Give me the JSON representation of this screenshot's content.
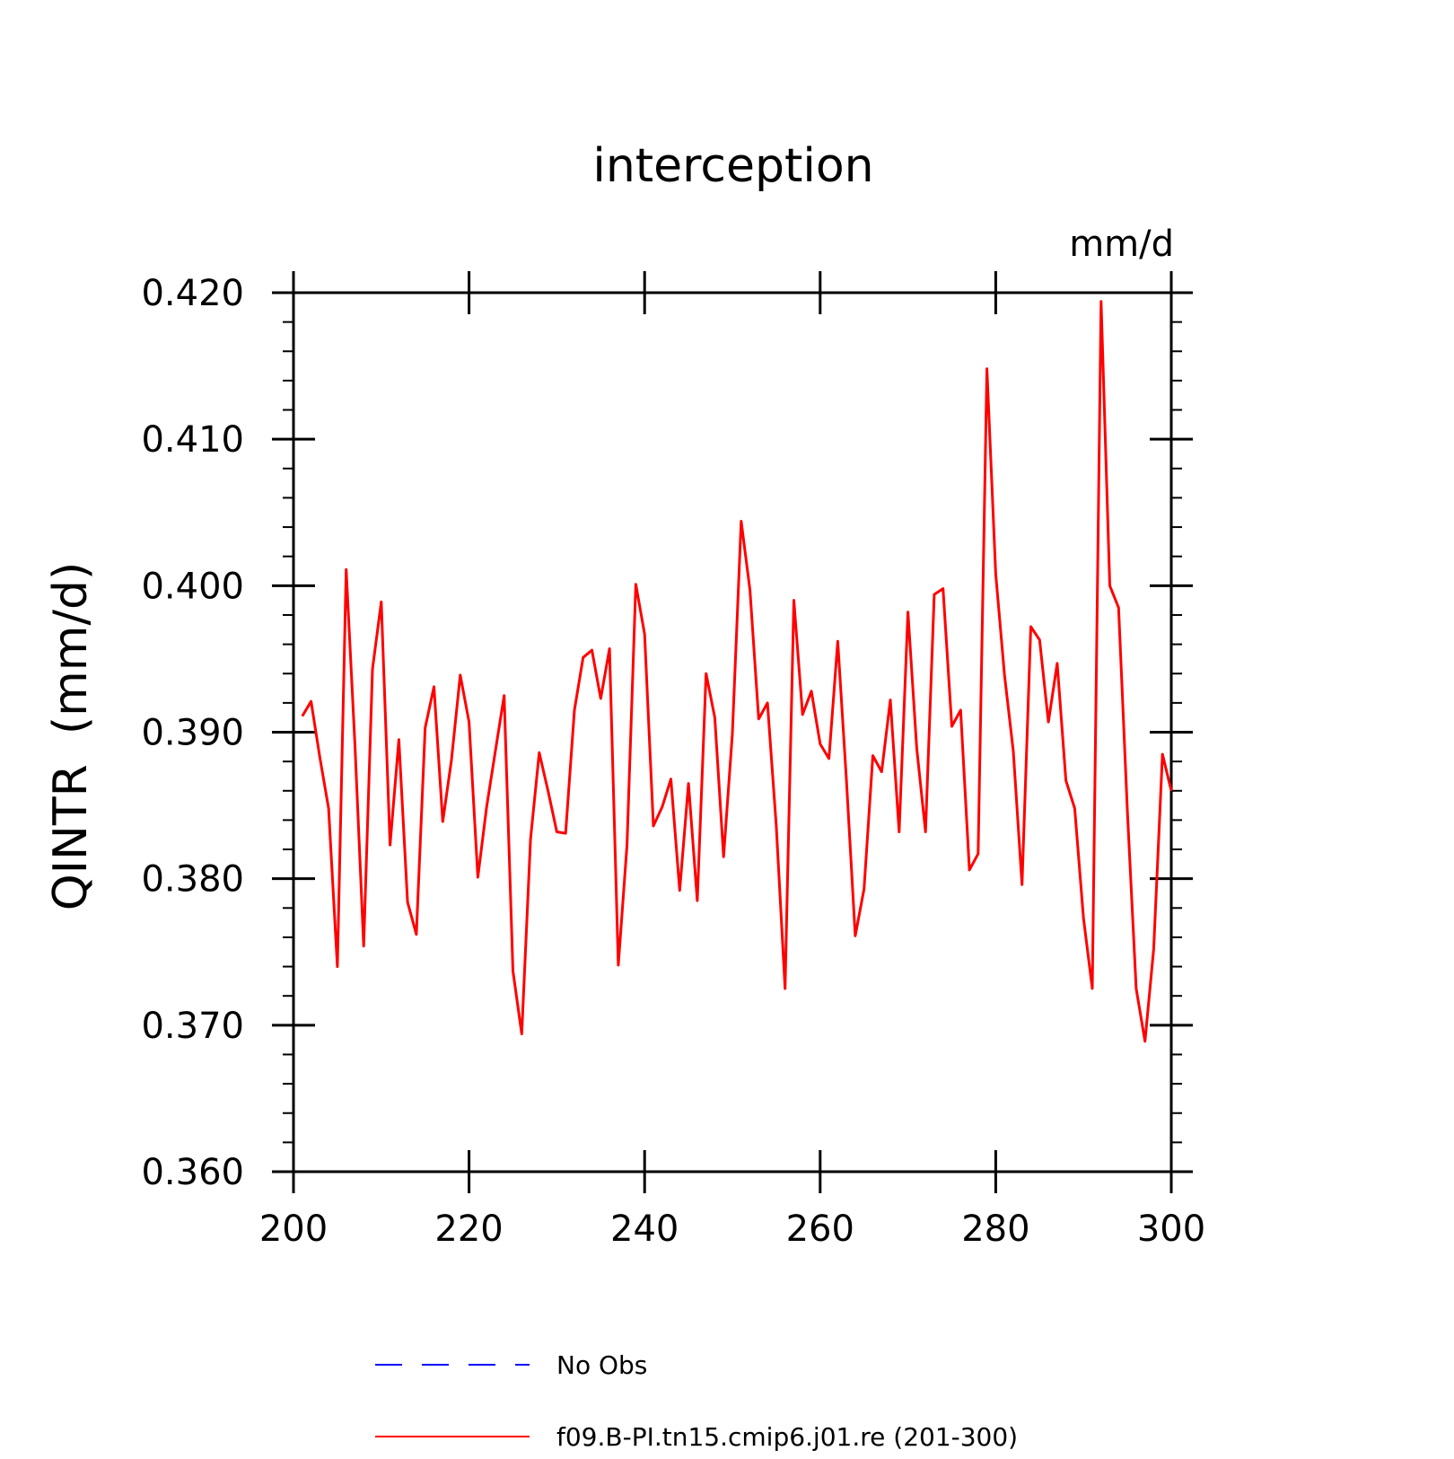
{
  "chart_data": {
    "type": "line",
    "title": "interception",
    "units_label": "mm/d",
    "xlabel": "",
    "ylabel": "QINTR  (mm/d)",
    "xlim": [
      200,
      300
    ],
    "ylim": [
      0.36,
      0.42
    ],
    "x_ticks": [
      200,
      220,
      240,
      260,
      280,
      300
    ],
    "x_tick_labels": [
      "200",
      "220",
      "240",
      "260",
      "280",
      "300"
    ],
    "x_minor_step": 5,
    "y_ticks": [
      0.36,
      0.37,
      0.38,
      0.39,
      0.4,
      0.41,
      0.42
    ],
    "y_tick_labels": [
      "0.360",
      "0.370",
      "0.380",
      "0.390",
      "0.400",
      "0.410",
      "0.420"
    ],
    "y_minor_step": 0.002,
    "grid": false,
    "legend_position": "bottom",
    "legend": [
      {
        "label": "No Obs",
        "color": "#0000ff",
        "dash": "dashed"
      },
      {
        "label": "f09.B-PI.tn15.cmip6.j01.re (201-300)",
        "color": "#ff0000",
        "dash": "solid"
      }
    ],
    "series": [
      {
        "name": "f09.B-PI.tn15.cmip6.j01.re (201-300)",
        "color": "#ff0000",
        "x": [
          201,
          202,
          203,
          204,
          205,
          206,
          207,
          208,
          209,
          210,
          211,
          212,
          213,
          214,
          215,
          216,
          217,
          218,
          219,
          220,
          221,
          222,
          223,
          224,
          225,
          226,
          227,
          228,
          229,
          230,
          231,
          232,
          233,
          234,
          235,
          236,
          237,
          238,
          239,
          240,
          241,
          242,
          243,
          244,
          245,
          246,
          247,
          248,
          249,
          250,
          251,
          252,
          253,
          254,
          255,
          256,
          257,
          258,
          259,
          260,
          261,
          262,
          263,
          264,
          265,
          266,
          267,
          268,
          269,
          270,
          271,
          272,
          273,
          274,
          275,
          276,
          277,
          278,
          279,
          280,
          281,
          282,
          283,
          284,
          285,
          286,
          287,
          288,
          289,
          290,
          291,
          292,
          293,
          294,
          295,
          296,
          297,
          298,
          299,
          300
        ],
        "values": [
          0.3911,
          0.3921,
          0.3883,
          0.3848,
          0.374,
          0.4011,
          0.3891,
          0.3754,
          0.3943,
          0.3989,
          0.3823,
          0.3895,
          0.3784,
          0.3762,
          0.3903,
          0.3931,
          0.3839,
          0.3881,
          0.3939,
          0.3907,
          0.3801,
          0.3849,
          0.3887,
          0.3925,
          0.3737,
          0.3694,
          0.3827,
          0.3886,
          0.386,
          0.3832,
          0.3831,
          0.3915,
          0.3951,
          0.3956,
          0.3923,
          0.3957,
          0.3741,
          0.3823,
          0.4001,
          0.3967,
          0.3836,
          0.3849,
          0.3868,
          0.3792,
          0.3865,
          0.3785,
          0.394,
          0.391,
          0.3815,
          0.3899,
          0.4044,
          0.3997,
          0.3909,
          0.392,
          0.3836,
          0.3725,
          0.399,
          0.3912,
          0.3928,
          0.3892,
          0.3882,
          0.3962,
          0.3867,
          0.3761,
          0.3793,
          0.3884,
          0.3873,
          0.3922,
          0.3832,
          0.3982,
          0.3889,
          0.3832,
          0.3994,
          0.3998,
          0.3904,
          0.3915,
          0.3806,
          0.3817,
          0.4148,
          0.4008,
          0.3939,
          0.3887,
          0.3796,
          0.3972,
          0.3963,
          0.3907,
          0.3947,
          0.3867,
          0.3848,
          0.3773,
          0.3725,
          0.4194,
          0.4,
          0.3985,
          0.3846,
          0.3725,
          0.3689,
          0.3752,
          0.3885,
          0.386
        ]
      }
    ]
  }
}
